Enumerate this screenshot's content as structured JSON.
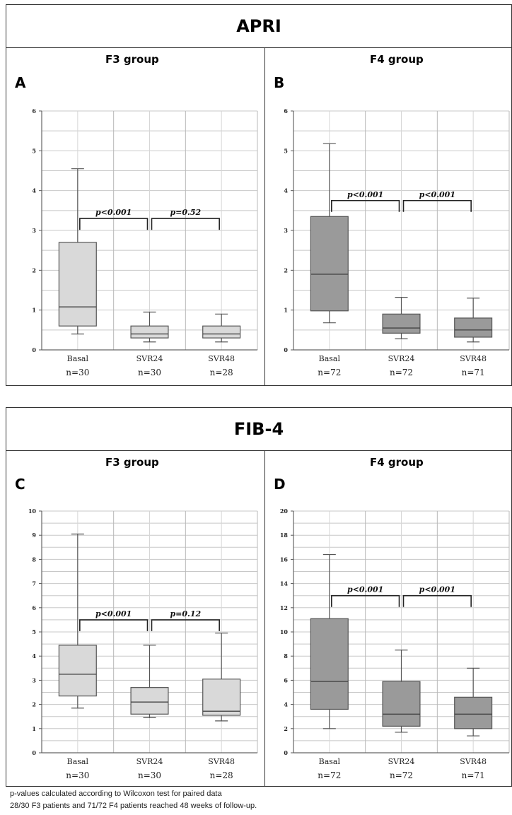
{
  "sections": [
    {
      "title": "APRI"
    },
    {
      "title": "FIB-4"
    }
  ],
  "footnotes": [
    "p-values calculated according to Wilcoxon test for paired data",
    "28/30 F3 patients and 71/72 F4 patients reached 48 weeks of follow-up."
  ],
  "chart_data": [
    {
      "panel": "A",
      "group_title": "F3 group",
      "type": "box",
      "ylim": [
        0,
        6
      ],
      "yticks": [
        0,
        1,
        2,
        3,
        4,
        5,
        6
      ],
      "grid": true,
      "fill_color": "#d9d9d9",
      "categories": [
        "Basal",
        "SVR24",
        "SVR48"
      ],
      "n_labels": [
        "n=30",
        "n=30",
        "n=28"
      ],
      "boxes": [
        {
          "whisker_low": 0.4,
          "q1": 0.6,
          "median": 1.08,
          "q3": 2.7,
          "whisker_high": 4.55
        },
        {
          "whisker_low": 0.2,
          "q1": 0.3,
          "median": 0.4,
          "q3": 0.6,
          "whisker_high": 0.95
        },
        {
          "whisker_low": 0.2,
          "q1": 0.3,
          "median": 0.4,
          "q3": 0.6,
          "whisker_high": 0.9
        }
      ],
      "comparisons": [
        {
          "from": 0,
          "to": 1,
          "label": "p<0.001",
          "y": 3.3
        },
        {
          "from": 1,
          "to": 2,
          "label": "p=0.52",
          "y": 3.3
        }
      ]
    },
    {
      "panel": "B",
      "group_title": "F4 group",
      "type": "box",
      "ylim": [
        0,
        6
      ],
      "yticks": [
        0,
        1,
        2,
        3,
        4,
        5,
        6
      ],
      "grid": true,
      "fill_color": "#9a9a9a",
      "categories": [
        "Basal",
        "SVR24",
        "SVR48"
      ],
      "n_labels": [
        "n=72",
        "n=72",
        "n=71"
      ],
      "boxes": [
        {
          "whisker_low": 0.68,
          "q1": 0.98,
          "median": 1.9,
          "q3": 3.35,
          "whisker_high": 5.18
        },
        {
          "whisker_low": 0.28,
          "q1": 0.42,
          "median": 0.55,
          "q3": 0.9,
          "whisker_high": 1.32
        },
        {
          "whisker_low": 0.2,
          "q1": 0.32,
          "median": 0.5,
          "q3": 0.8,
          "whisker_high": 1.3
        }
      ],
      "comparisons": [
        {
          "from": 0,
          "to": 1,
          "label": "p<0.001",
          "y": 3.75
        },
        {
          "from": 1,
          "to": 2,
          "label": "p<0.001",
          "y": 3.75
        }
      ]
    },
    {
      "panel": "C",
      "group_title": "F3 group",
      "type": "box",
      "ylim": [
        0,
        10
      ],
      "yticks": [
        0,
        1,
        2,
        3,
        4,
        5,
        6,
        7,
        8,
        9,
        10
      ],
      "grid": true,
      "fill_color": "#d9d9d9",
      "categories": [
        "Basal",
        "SVR24",
        "SVR48"
      ],
      "n_labels": [
        "n=30",
        "n=30",
        "n=28"
      ],
      "boxes": [
        {
          "whisker_low": 1.85,
          "q1": 2.35,
          "median": 3.25,
          "q3": 4.45,
          "whisker_high": 9.05
        },
        {
          "whisker_low": 1.45,
          "q1": 1.6,
          "median": 2.1,
          "q3": 2.7,
          "whisker_high": 4.45
        },
        {
          "whisker_low": 1.32,
          "q1": 1.55,
          "median": 1.72,
          "q3": 3.05,
          "whisker_high": 4.95
        }
      ],
      "comparisons": [
        {
          "from": 0,
          "to": 1,
          "label": "p<0.001",
          "y": 5.5
        },
        {
          "from": 1,
          "to": 2,
          "label": "p=0.12",
          "y": 5.5
        }
      ]
    },
    {
      "panel": "D",
      "group_title": "F4 group",
      "type": "box",
      "ylim": [
        0,
        20
      ],
      "yticks": [
        0,
        2,
        4,
        6,
        8,
        10,
        12,
        14,
        16,
        18,
        20
      ],
      "grid": true,
      "fill_color": "#9a9a9a",
      "categories": [
        "Basal",
        "SVR24",
        "SVR48"
      ],
      "n_labels": [
        "n=72",
        "n=72",
        "n=71"
      ],
      "boxes": [
        {
          "whisker_low": 2.0,
          "q1": 3.6,
          "median": 5.9,
          "q3": 11.1,
          "whisker_high": 16.4
        },
        {
          "whisker_low": 1.7,
          "q1": 2.2,
          "median": 3.2,
          "q3": 5.9,
          "whisker_high": 8.5
        },
        {
          "whisker_low": 1.4,
          "q1": 2.0,
          "median": 3.2,
          "q3": 4.6,
          "whisker_high": 7.0
        }
      ],
      "comparisons": [
        {
          "from": 0,
          "to": 1,
          "label": "p<0.001",
          "y": 13.0
        },
        {
          "from": 1,
          "to": 2,
          "label": "p<0.001",
          "y": 13.0
        }
      ]
    }
  ]
}
